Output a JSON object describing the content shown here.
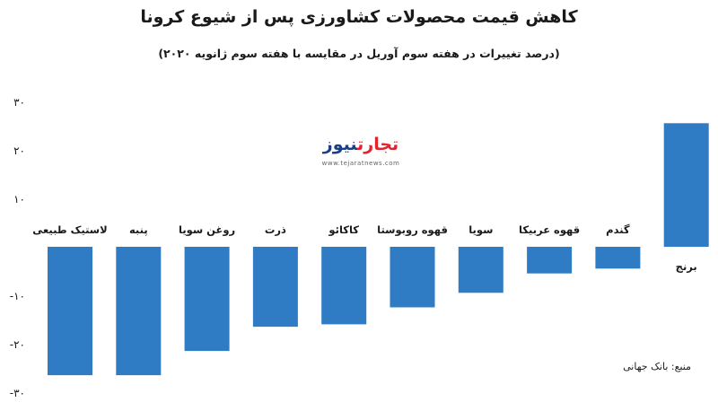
{
  "title": "کاهش قیمت محصولات کشاورزی پس از شیوع کرونا",
  "subtitle": "(درصد تغییرات در هفته سوم آوریل در مقایسه با هفته سوم ژانویه ۲۰۲۰)",
  "source": "منبع: بانک جهانی",
  "logo": {
    "part1": "تجارت",
    "part2": "نیوز",
    "url": "www.tejaratnews.com"
  },
  "colors": {
    "bar": "#2f7cc4",
    "text": "#1a1a1a",
    "logo_red": "#e4212c",
    "logo_blue": "#1c3f86"
  },
  "chart_data": {
    "type": "bar",
    "title": "کاهش قیمت محصولات کشاورزی پس از شیوع کرونا",
    "subtitle": "(درصد تغییرات در هفته سوم آوریل در مقایسه با هفته سوم ژانویه ۲۰۲۰)",
    "categories": [
      "لاستیک طبیعی",
      "پنبه",
      "روغن سویا",
      "ذرت",
      "کاکائو",
      "قهوه روبوستا",
      "سویا",
      "قهوه عربیکا",
      "گندم",
      "برنج"
    ],
    "values": [
      -26.5,
      -26.5,
      -21.5,
      -16.5,
      -16,
      -12.5,
      -9.5,
      -5.5,
      -4.5,
      25.5
    ],
    "yticks": [
      -30,
      -20,
      -10,
      10,
      20,
      30
    ],
    "ytick_labels": [
      "-۳۰",
      "-۲۰",
      "-۱۰",
      "۱۰",
      "۲۰",
      "۳۰"
    ],
    "ylim": [
      -32,
      32
    ],
    "xlabel": "",
    "ylabel": "",
    "grid": false,
    "legend": "none"
  }
}
